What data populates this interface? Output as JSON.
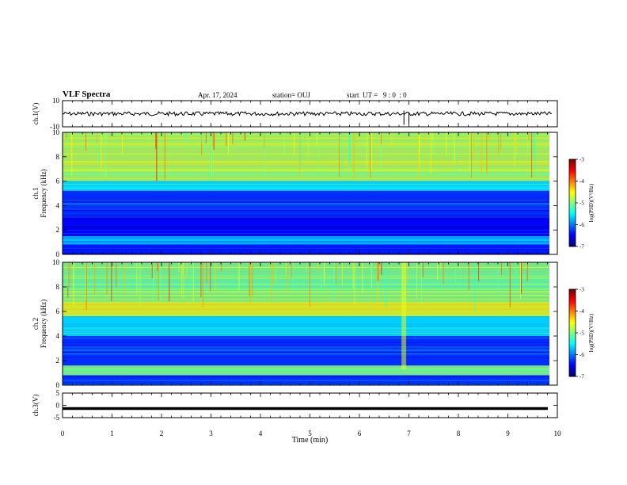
{
  "header": {
    "title": "VLF Spectra",
    "date": "Apr. 17, 2024",
    "station": "station= OUJ",
    "start": "start  UT =   9 : 0  : 0"
  },
  "chart_data": [
    {
      "type": "line",
      "panel": "waveform-ch1",
      "ylabel": "ch.1(V)",
      "ylim": [
        -10,
        10
      ],
      "yticks": [
        "10",
        "-10"
      ],
      "xlim": [
        0,
        10
      ],
      "baseline": 0,
      "series": [
        {
          "values": [
            0.2,
            0.5,
            -0.3,
            0.1,
            0.4,
            -0.2,
            0.3,
            0.0,
            0.6,
            -0.4,
            0.2,
            0.1,
            -0.3,
            0.5,
            0.2,
            -0.1,
            0.3,
            0.4,
            -0.2,
            0.1,
            0.0,
            0.3
          ]
        }
      ]
    },
    {
      "type": "heatmap",
      "panel": "spectrogram-ch1",
      "ylabel": "ch.1\nFrequency (kHz)",
      "ylim": [
        0,
        10
      ],
      "yticks": [
        "0",
        "2",
        "4",
        "6",
        "8",
        "10"
      ],
      "xlim": [
        0,
        10
      ],
      "colorbar": {
        "label": "log(PSD)(V²/Hz)",
        "range": [
          -7,
          -3
        ],
        "ticks": [
          "-3",
          "-4",
          "-5",
          "-6",
          "-7"
        ]
      },
      "bands": [
        {
          "from_khz": 6.0,
          "to_khz": 10.0,
          "level": -4.8
        },
        {
          "from_khz": 5.2,
          "to_khz": 6.0,
          "level": -5.6
        },
        {
          "from_khz": 3.0,
          "to_khz": 5.2,
          "level": -6.3
        },
        {
          "from_khz": 1.5,
          "to_khz": 3.0,
          "level": -6.5
        },
        {
          "from_khz": 0.8,
          "to_khz": 1.5,
          "level": -5.8
        },
        {
          "from_khz": 0.0,
          "to_khz": 0.8,
          "level": -6.4
        }
      ]
    },
    {
      "type": "heatmap",
      "panel": "spectrogram-ch2",
      "ylabel": "ch.2\nFrequency (kHz)",
      "ylim": [
        0,
        10
      ],
      "yticks": [
        "0",
        "2",
        "4",
        "6",
        "8",
        "10"
      ],
      "xlim": [
        0,
        10
      ],
      "colorbar": {
        "label": "log(PSD)(V²/Hz)",
        "range": [
          -7,
          -3
        ],
        "ticks": [
          "-3",
          "-4",
          "-5",
          "-6",
          "-7"
        ]
      },
      "bands": [
        {
          "from_khz": 6.8,
          "to_khz": 10.0,
          "level": -5.0
        },
        {
          "from_khz": 5.6,
          "to_khz": 6.8,
          "level": -4.6
        },
        {
          "from_khz": 4.0,
          "to_khz": 5.6,
          "level": -5.6
        },
        {
          "from_khz": 1.6,
          "to_khz": 4.0,
          "level": -6.3
        },
        {
          "from_khz": 0.8,
          "to_khz": 1.6,
          "level": -5.0
        },
        {
          "from_khz": 0.0,
          "to_khz": 0.8,
          "level": -6.3
        }
      ]
    },
    {
      "type": "line",
      "panel": "waveform-ch3",
      "ylabel": "ch.3(V)",
      "ylim": [
        -5,
        5
      ],
      "yticks": [
        "5",
        "0",
        "-5"
      ],
      "xlim": [
        0,
        10
      ],
      "baseline": -1.3,
      "series": [
        {
          "values": [
            -1.3,
            -1.3,
            -1.3,
            -1.3,
            -1.3,
            -1.3,
            -1.3,
            -1.3,
            -1.3,
            -1.3,
            -1.3
          ]
        }
      ]
    }
  ],
  "xaxis": {
    "label": "Time  (min)",
    "ticks": [
      "0",
      "1",
      "2",
      "3",
      "4",
      "5",
      "6",
      "7",
      "8",
      "9",
      "10"
    ]
  }
}
